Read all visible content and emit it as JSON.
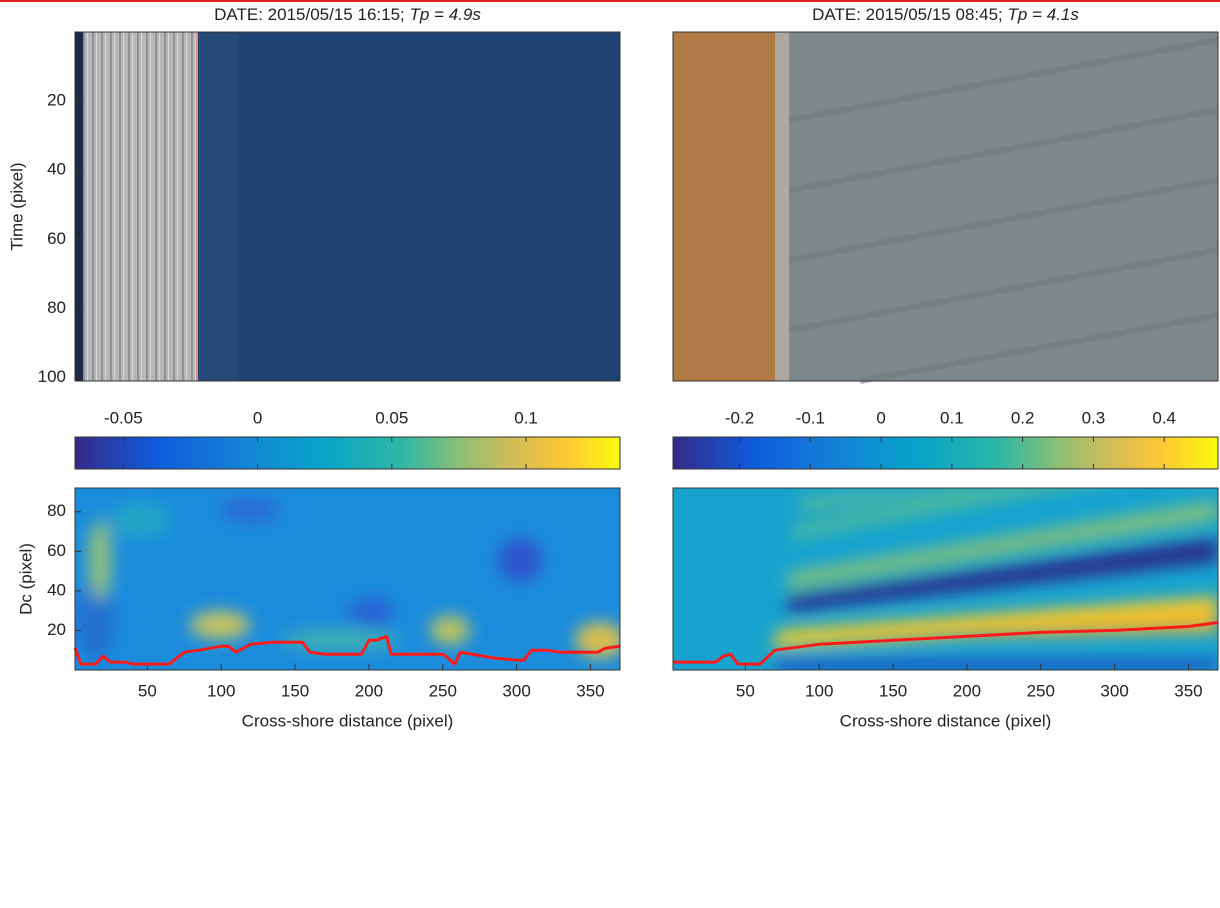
{
  "chart_data": [
    {
      "type": "image",
      "title": [
        "DATE: 2015/05/15 16:15;  ",
        "Tp = 4.9s"
      ],
      "ylabel": "Time (pixel)",
      "ylim": [
        0,
        101
      ],
      "y_reversed": true,
      "yticks": [
        20,
        40,
        60,
        80,
        100
      ]
    },
    {
      "type": "colorbar",
      "xlim": [
        -0.068,
        0.135
      ],
      "xticks": [
        -0.05,
        0,
        0.05,
        0.1
      ]
    },
    {
      "type": "heatmap",
      "ylabel": "Dc (pixel)",
      "xlabel": "Cross-shore distance (pixel)",
      "xlim": [
        1,
        370
      ],
      "xticks": [
        50,
        100,
        150,
        200,
        250,
        300,
        350
      ],
      "ylim": [
        0,
        92
      ],
      "yticks": [
        20,
        40,
        60,
        80
      ],
      "series": [
        {
          "color": "#ff1a1a",
          "x": [
            1,
            5,
            15,
            20,
            25,
            35,
            40,
            60,
            65,
            75,
            85,
            100,
            105,
            110,
            120,
            135,
            155,
            160,
            170,
            195,
            200,
            205,
            212,
            215,
            250,
            252,
            258,
            262,
            285,
            300,
            305,
            310,
            320,
            330,
            355,
            360,
            370
          ],
          "values": [
            11,
            3,
            3,
            7,
            4,
            4,
            3,
            3,
            3,
            9,
            10,
            12,
            12,
            9,
            13,
            14,
            14,
            9,
            8,
            8,
            15,
            15,
            17,
            8,
            8,
            7,
            3,
            9,
            6,
            5,
            5,
            10,
            10,
            9,
            9,
            11,
            12
          ]
        }
      ]
    },
    {
      "type": "image",
      "title": [
        "DATE: 2015/05/15 08:45;  ",
        "Tp = 4.1s"
      ],
      "ylim": [
        0,
        101
      ],
      "y_reversed": true
    },
    {
      "type": "colorbar",
      "xlim": [
        -0.294,
        0.476
      ],
      "xticks": [
        -0.2,
        -0.1,
        0,
        0.1,
        0.2,
        0.3,
        0.4
      ]
    },
    {
      "type": "heatmap",
      "xlabel": "Cross-shore distance (pixel)",
      "xlim": [
        1,
        370
      ],
      "xticks": [
        50,
        100,
        150,
        200,
        250,
        300,
        350
      ],
      "ylim": [
        0,
        92
      ],
      "series": [
        {
          "color": "#ff1a1a",
          "x": [
            1,
            30,
            35,
            40,
            45,
            55,
            60,
            70,
            80,
            100,
            150,
            200,
            250,
            300,
            350,
            370
          ],
          "values": [
            4,
            4,
            7,
            8,
            3,
            3,
            3,
            10,
            11,
            13,
            15,
            17,
            19,
            20,
            22,
            24
          ]
        }
      ]
    }
  ]
}
